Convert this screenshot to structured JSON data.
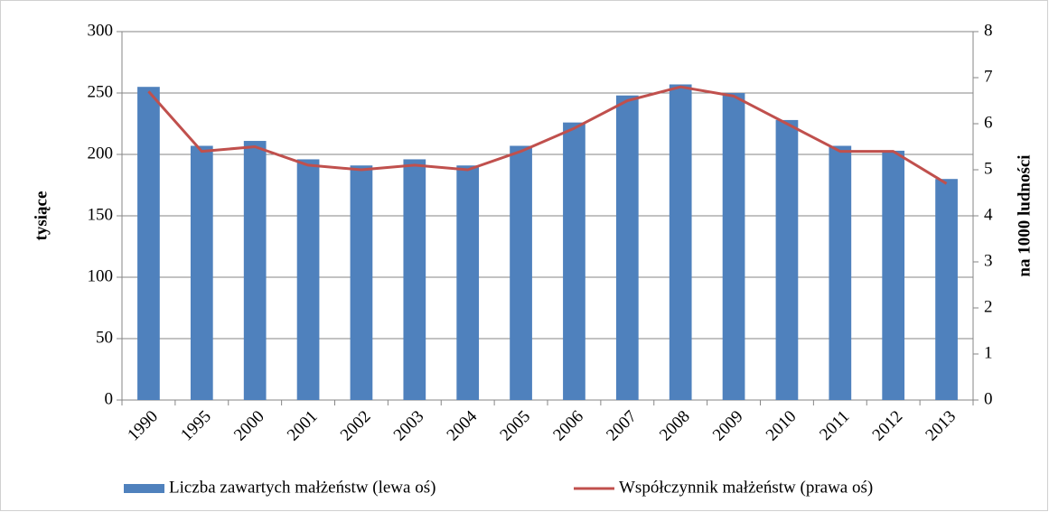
{
  "chart_data": {
    "type": "bar_line",
    "y_label": "tysiące",
    "y2_label": "na 1000 ludności",
    "categories": [
      "1990",
      "1995",
      "2000",
      "2001",
      "2002",
      "2003",
      "2004",
      "2005",
      "2006",
      "2007",
      "2008",
      "2009",
      "2010",
      "2011",
      "2012",
      "2013"
    ],
    "series": [
      {
        "name": "Liczba zawartych małżeństw (lewa oś)",
        "type": "bar",
        "color": "#4f81bd",
        "values": [
          255,
          207,
          211,
          196,
          191,
          196,
          191,
          207,
          226,
          248,
          257,
          250,
          228,
          207,
          203,
          180
        ]
      },
      {
        "name": "Współczynnik małżeństw (prawa oś)",
        "type": "line",
        "axis": "y2",
        "color": "#c0504d",
        "values": [
          6.7,
          5.4,
          5.5,
          5.1,
          5.0,
          5.1,
          5.0,
          5.4,
          5.9,
          6.5,
          6.8,
          6.6,
          6.0,
          5.4,
          5.4,
          4.7
        ]
      }
    ],
    "ylim": [
      0,
      300
    ],
    "yticks": [
      0,
      50,
      100,
      150,
      200,
      250,
      300
    ],
    "y2lim": [
      0,
      8
    ],
    "y2ticks": [
      0,
      1,
      2,
      3,
      4,
      5,
      6,
      7,
      8
    ],
    "grid": true,
    "legend": "bottom"
  }
}
